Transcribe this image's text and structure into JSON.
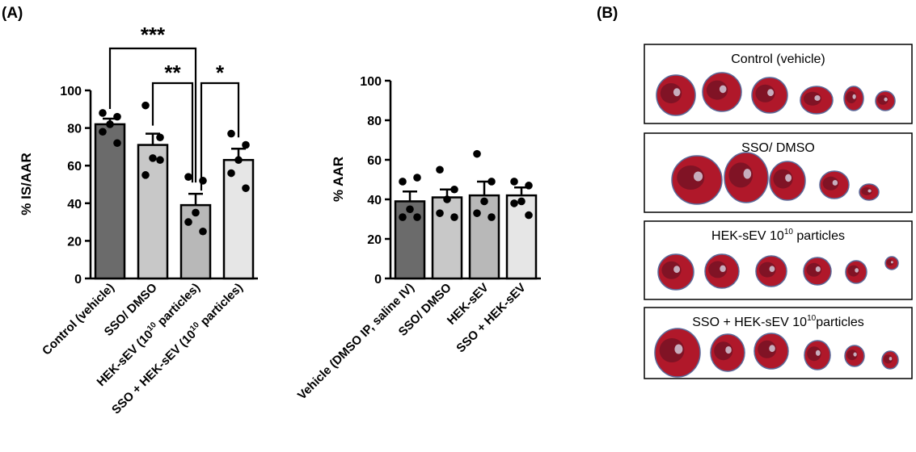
{
  "panels": {
    "a_label": "(A)",
    "b_label": "(B)"
  },
  "chart_data": [
    {
      "type": "bar",
      "ylabel": "% IS/AAR",
      "ylim": [
        0,
        100
      ],
      "yticks": [
        0,
        20,
        40,
        60,
        80,
        100
      ],
      "categories": [
        "Control (vehicle)",
        "SSO/ DMSO",
        "HEK-sEV (10^10 particles)",
        "SSO + HEK-sEV (10^10 particles)"
      ],
      "values": [
        82,
        71,
        39,
        63
      ],
      "sem": [
        3,
        6,
        6,
        6
      ],
      "colors": [
        "#6b6b6b",
        "#c8c8c8",
        "#b8b8b8",
        "#e6e6e6"
      ],
      "points": [
        [
          88,
          86,
          82,
          78,
          72
        ],
        [
          92,
          75,
          64,
          55,
          63
        ],
        [
          54,
          52,
          35,
          30,
          25
        ],
        [
          77,
          71,
          63,
          56,
          48
        ]
      ],
      "significance": [
        {
          "from": 0,
          "to": 2,
          "label": "***"
        },
        {
          "from": 1,
          "to": 2,
          "label": "**"
        },
        {
          "from": 2,
          "to": 3,
          "label": "*"
        }
      ]
    },
    {
      "type": "bar",
      "ylabel": "% AAR",
      "ylim": [
        0,
        100
      ],
      "yticks": [
        0,
        20,
        40,
        60,
        80,
        100
      ],
      "categories": [
        "Vehicle (DMSO IP, saline IV)",
        "SSO/ DMSO",
        "HEK-sEV",
        "SSO + HEK-sEV"
      ],
      "values": [
        39,
        41,
        42,
        42
      ],
      "sem": [
        5,
        4,
        7,
        4
      ],
      "colors": [
        "#6b6b6b",
        "#c8c8c8",
        "#b8b8b8",
        "#e6e6e6"
      ],
      "points": [
        [
          49,
          51,
          35,
          31,
          31
        ],
        [
          55,
          45,
          40,
          33,
          31
        ],
        [
          63,
          49,
          39,
          33,
          31
        ],
        [
          49,
          47,
          39,
          38,
          32
        ]
      ]
    }
  ],
  "photos": [
    {
      "caption": "Control (vehicle)",
      "sup": ""
    },
    {
      "caption": "SSO/ DMSO",
      "sup": ""
    },
    {
      "caption": "HEK-sEV 10",
      "sup": "10",
      "suffix": " particles"
    },
    {
      "caption": "SSO + HEK-sEV 10",
      "sup": "10",
      "suffix": "particles"
    }
  ]
}
